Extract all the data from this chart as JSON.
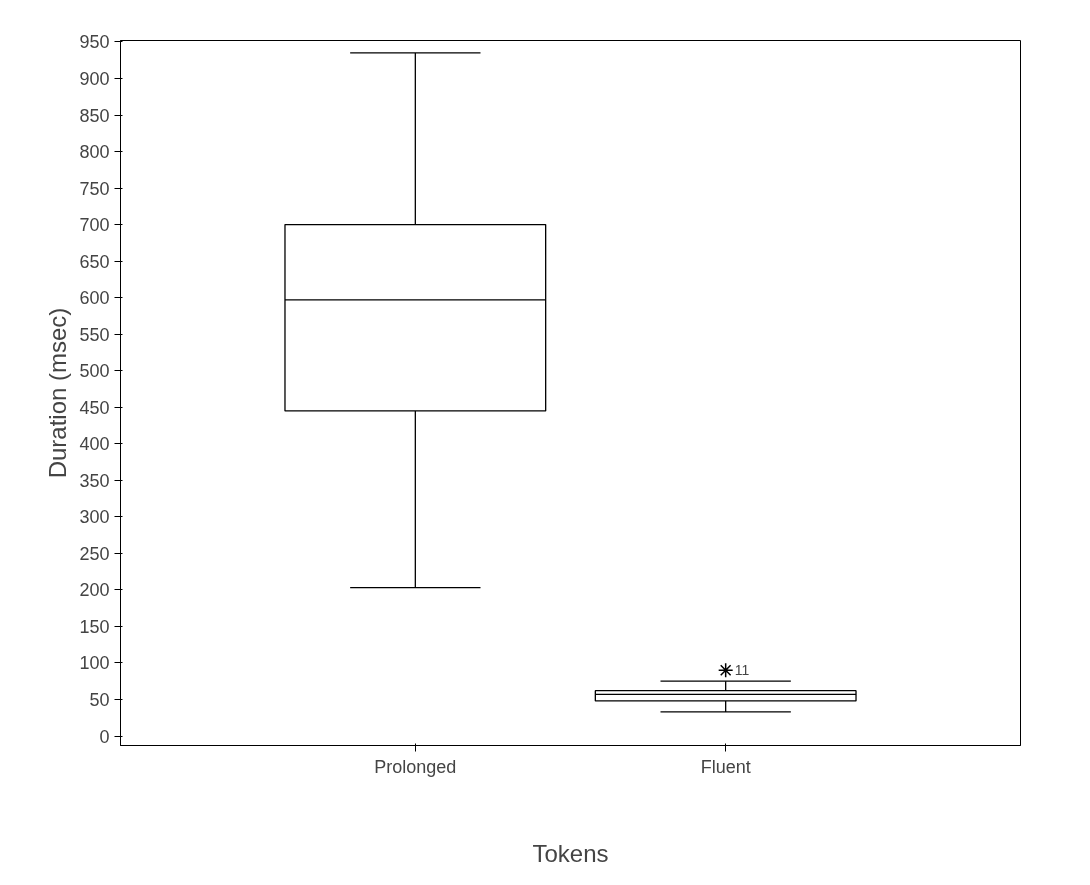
{
  "chart_data": {
    "type": "box",
    "xlabel": "Tokens",
    "ylabel": "Duration (msec)",
    "categories": [
      "Prolonged",
      "Fluent"
    ],
    "boxes": [
      {
        "low": 203,
        "q1": 445,
        "median": 597,
        "q3": 700,
        "high": 935
      },
      {
        "low": 33,
        "q1": 48,
        "median": 57,
        "q3": 62,
        "high": 75,
        "outliers": [
          90
        ]
      }
    ],
    "ylim": [
      -13,
      952
    ],
    "yticks": [
      0,
      50,
      100,
      150,
      200,
      250,
      300,
      350,
      400,
      450,
      500,
      550,
      600,
      650,
      700,
      750,
      800,
      850,
      900,
      950
    ],
    "annotations": [
      "11"
    ],
    "grid": false,
    "marker": "cross",
    "color": "#000000"
  }
}
